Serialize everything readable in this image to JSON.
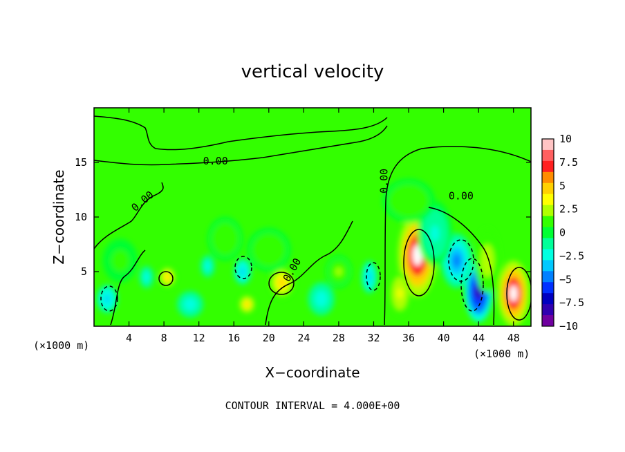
{
  "chart_data": {
    "type": "heatmap",
    "title": "vertical velocity",
    "xlabel": "X−coordinate",
    "ylabel": "Z−coordinate",
    "x_unit_left": "(×1000 m)",
    "x_unit_right": "(×1000 m)",
    "xlim": [
      0,
      50
    ],
    "ylim": [
      0,
      20
    ],
    "x_ticks": [
      4,
      8,
      12,
      16,
      20,
      24,
      28,
      32,
      36,
      40,
      44,
      48
    ],
    "y_ticks": [
      5,
      10,
      15
    ],
    "colorbar": {
      "ticks": [
        "10",
        "7.5",
        "5",
        "2.5",
        "0",
        "−2.5",
        "−5",
        "−7.5",
        "−10"
      ],
      "range": [
        -10,
        10
      ],
      "colors": [
        "#ffc4c4",
        "#ff6060",
        "#ff2020",
        "#ff8c00",
        "#ffd000",
        "#ffff00",
        "#b0ff00",
        "#33ff00",
        "#00ff33",
        "#00ff99",
        "#00ffe0",
        "#00c8ff",
        "#0080ff",
        "#0030ff",
        "#0000c0",
        "#3000b0",
        "#7000a0"
      ]
    },
    "contour_labels": [
      {
        "text": "0.00",
        "x": 13.9,
        "y": 14.8,
        "rotate": 0
      },
      {
        "text": "0.00",
        "x": 5.8,
        "y": 11.2,
        "rotate": -40
      },
      {
        "text": "0.00",
        "x": 33.6,
        "y": 13.3,
        "rotate": -90
      },
      {
        "text": "0.00",
        "x": 42.0,
        "y": 11.6,
        "rotate": 0
      },
      {
        "text": "0.00",
        "x": 23.0,
        "y": 5.0,
        "rotate": -60
      }
    ],
    "anomalies": [
      {
        "x": 37.0,
        "y": 6.5,
        "rx": 2.2,
        "ry": 3.8,
        "value": 10
      },
      {
        "x": 48.0,
        "y": 3.0,
        "rx": 1.8,
        "ry": 3.0,
        "value": 10
      },
      {
        "x": 44.0,
        "y": 3.2,
        "rx": 1.6,
        "ry": 2.8,
        "value": -9
      },
      {
        "x": 41.5,
        "y": 6.0,
        "rx": 1.8,
        "ry": 2.5,
        "value": -5
      },
      {
        "x": 21.5,
        "y": 4.0,
        "rx": 1.5,
        "ry": 1.5,
        "value": 5.5
      },
      {
        "x": 8.4,
        "y": 4.5,
        "rx": 1.0,
        "ry": 1.0,
        "value": 5.5
      },
      {
        "x": 17.5,
        "y": 2.0,
        "rx": 1.0,
        "ry": 0.9,
        "value": 4.5
      },
      {
        "x": 17.0,
        "y": 5.0,
        "rx": 1.0,
        "ry": 1.2,
        "value": -4
      },
      {
        "x": 31.5,
        "y": 4.5,
        "rx": 0.9,
        "ry": 1.5,
        "value": -4
      },
      {
        "x": 1.5,
        "y": 2.5,
        "rx": 1.2,
        "ry": 1.3,
        "value": -4
      },
      {
        "x": 6.0,
        "y": 4.5,
        "rx": 0.8,
        "ry": 1.0,
        "value": -3
      },
      {
        "x": 13.0,
        "y": 5.5,
        "rx": 0.8,
        "ry": 1.0,
        "value": -2.5
      },
      {
        "x": 11.0,
        "y": 2.0,
        "rx": 1.5,
        "ry": 1.2,
        "value": -3
      },
      {
        "x": 26.0,
        "y": 2.5,
        "rx": 1.5,
        "ry": 1.5,
        "value": -3
      },
      {
        "x": 35.0,
        "y": 3.0,
        "rx": 1.2,
        "ry": 2.0,
        "value": 4
      },
      {
        "x": 45.0,
        "y": 6.0,
        "rx": 1.5,
        "ry": 3.0,
        "value": 3
      },
      {
        "x": 39.0,
        "y": 8.5,
        "rx": 2.0,
        "ry": 3.0,
        "value": -2
      },
      {
        "x": 36.0,
        "y": 11.5,
        "rx": 3.0,
        "ry": 2.0,
        "value": 1.5
      },
      {
        "x": 20.0,
        "y": 7.0,
        "rx": 2.5,
        "ry": 2.0,
        "value": 1.5
      },
      {
        "x": 3.0,
        "y": 6.0,
        "rx": 2.0,
        "ry": 2.0,
        "value": 1.0
      },
      {
        "x": 28.0,
        "y": 5.0,
        "rx": 1.5,
        "ry": 1.5,
        "value": 2.0
      },
      {
        "x": 15.0,
        "y": 8.0,
        "rx": 2.0,
        "ry": 2.0,
        "value": 1.5
      }
    ]
  },
  "footer": {
    "contour_interval": "CONTOUR INTERVAL = 4.000E+00"
  }
}
